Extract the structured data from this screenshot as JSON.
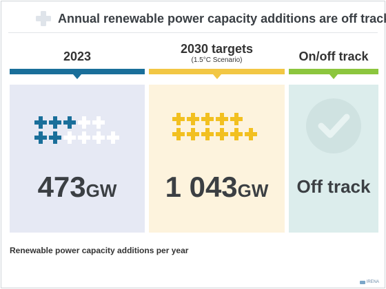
{
  "header": {
    "title": "Annual renewable power capacity additions are off track"
  },
  "columns": [
    {
      "label": "2023",
      "sublabel": "",
      "value": "473",
      "unit": "GW",
      "bar_color": "#1a6f9a",
      "panel_color": "#e6e9f4",
      "plus_color": "#1a6f9a",
      "icons": {
        "filled": 5,
        "total": 10
      }
    },
    {
      "label": "2030 targets",
      "sublabel": "(1.5°C Scenario)",
      "value": "1 043",
      "unit": "GW",
      "bar_color": "#f2c744",
      "panel_color": "#fdf3dd",
      "plus_color": "#f2c020",
      "icons": {
        "filled": 11,
        "total": 11
      }
    },
    {
      "label": "On/off track",
      "status": "Off track",
      "bar_color": "#8cc63e",
      "panel_color": "#dcedec",
      "icon": "check-circle-icon"
    }
  ],
  "footnote": "Renewable power capacity additions per year",
  "credit": "IRENA"
}
